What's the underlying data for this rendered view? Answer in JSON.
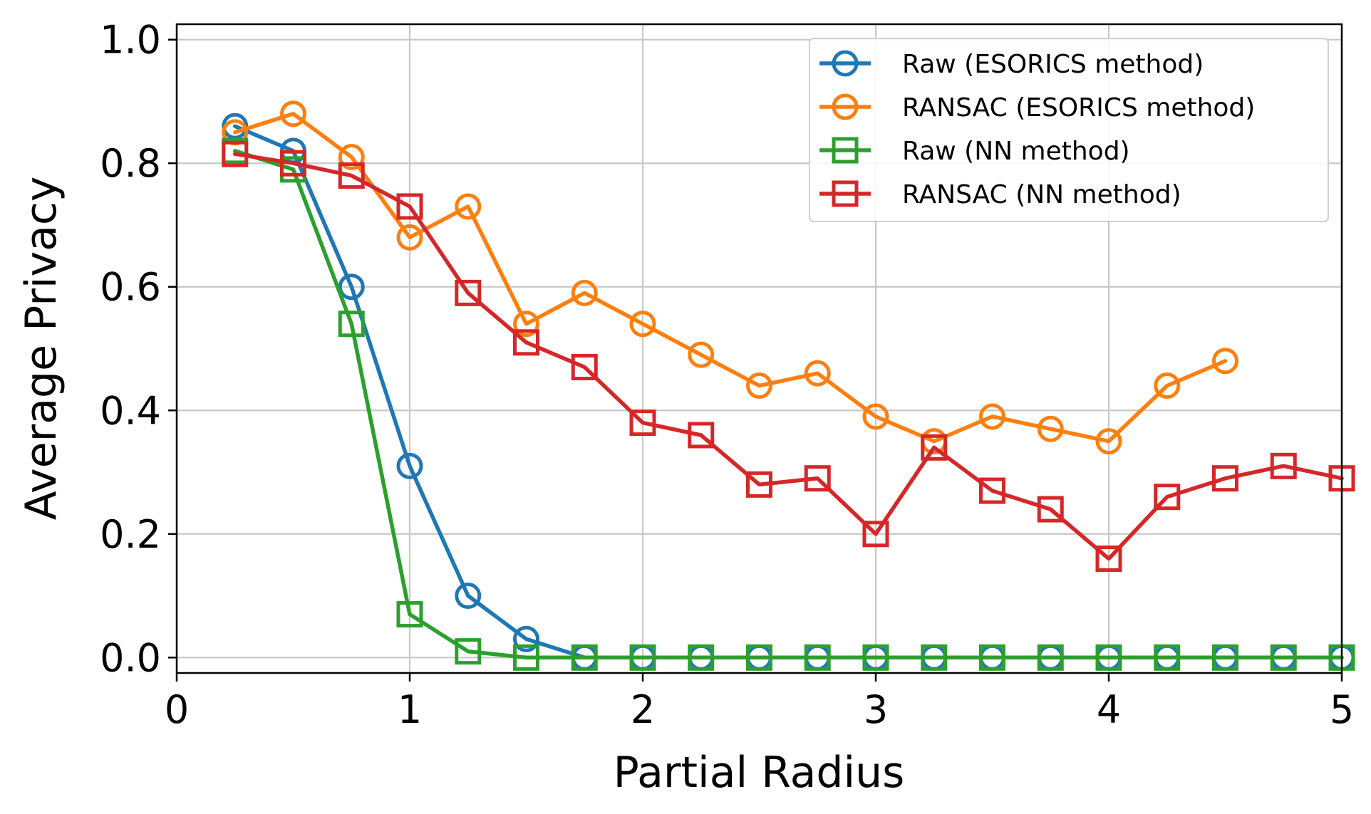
{
  "chart_data": {
    "type": "line",
    "title": "",
    "xlabel": "Partial Radius",
    "ylabel": "Average Privacy",
    "xlim": [
      0,
      5
    ],
    "ylim": [
      -0.025,
      1.025
    ],
    "xticks": [
      0,
      1,
      2,
      3,
      4,
      5
    ],
    "xtick_labels": [
      "0",
      "1",
      "2",
      "3",
      "4",
      "5"
    ],
    "yticks": [
      0.0,
      0.2,
      0.4,
      0.6,
      0.8,
      1.0
    ],
    "ytick_labels": [
      "0.0",
      "0.2",
      "0.4",
      "0.6",
      "0.8",
      "1.0"
    ],
    "grid": true,
    "legend_position": "top-right",
    "series": [
      {
        "name": "Raw (ESORICS method)",
        "color": "#1f77b4",
        "marker": "circle",
        "x": [
          0.25,
          0.5,
          0.75,
          1.0,
          1.25,
          1.5,
          1.75,
          2.0,
          2.25,
          2.5,
          2.75,
          3.0,
          3.25,
          3.5,
          3.75,
          4.0,
          4.25,
          4.5,
          4.75,
          5.0
        ],
        "y": [
          0.86,
          0.82,
          0.6,
          0.31,
          0.1,
          0.03,
          0.0,
          0.0,
          0.0,
          0.0,
          0.0,
          0.0,
          0.0,
          0.0,
          0.0,
          0.0,
          0.0,
          0.0,
          0.0,
          0.0
        ]
      },
      {
        "name": "RANSAC (ESORICS method)",
        "color": "#ff7f0e",
        "marker": "circle",
        "x": [
          0.25,
          0.5,
          0.75,
          1.0,
          1.25,
          1.5,
          1.75,
          2.0,
          2.25,
          2.5,
          2.75,
          3.0,
          3.25,
          3.5,
          3.75,
          4.0,
          4.25,
          4.5
        ],
        "y": [
          0.85,
          0.88,
          0.81,
          0.68,
          0.73,
          0.54,
          0.59,
          0.54,
          0.49,
          0.44,
          0.46,
          0.39,
          0.35,
          0.39,
          0.37,
          0.35,
          0.44,
          0.48
        ]
      },
      {
        "name": "Raw (NN method)",
        "color": "#2ca02c",
        "marker": "square",
        "x": [
          0.25,
          0.5,
          0.75,
          1.0,
          1.25,
          1.5,
          1.75,
          2.0,
          2.25,
          2.5,
          2.75,
          3.0,
          3.25,
          3.5,
          3.75,
          4.0,
          4.25,
          4.5,
          4.75,
          5.0
        ],
        "y": [
          0.82,
          0.79,
          0.54,
          0.07,
          0.01,
          0.0,
          0.0,
          0.0,
          0.0,
          0.0,
          0.0,
          0.0,
          0.0,
          0.0,
          0.0,
          0.0,
          0.0,
          0.0,
          0.0,
          0.0
        ]
      },
      {
        "name": "RANSAC (NN method)",
        "color": "#d62728",
        "marker": "square",
        "x": [
          0.25,
          0.5,
          0.75,
          1.0,
          1.25,
          1.5,
          1.75,
          2.0,
          2.25,
          2.5,
          2.75,
          3.0,
          3.25,
          3.5,
          3.75,
          4.0,
          4.25,
          4.5,
          4.75,
          5.0
        ],
        "y": [
          0.815,
          0.8,
          0.78,
          0.73,
          0.59,
          0.51,
          0.47,
          0.38,
          0.36,
          0.28,
          0.29,
          0.2,
          0.34,
          0.27,
          0.24,
          0.16,
          0.26,
          0.29,
          0.31,
          0.29
        ]
      }
    ]
  }
}
